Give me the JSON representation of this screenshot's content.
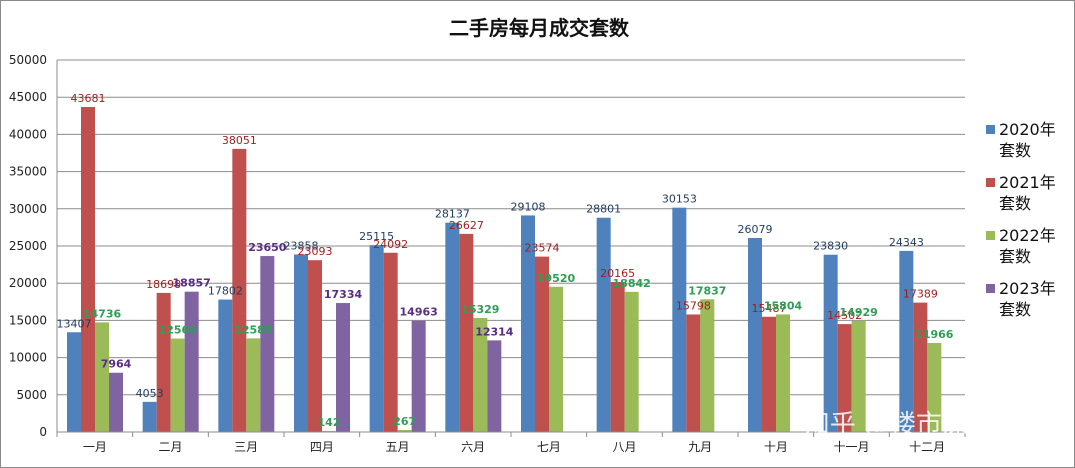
{
  "chart_data": {
    "type": "bar",
    "title": "二手房每月成交套数",
    "xlabel": "",
    "ylabel": "",
    "ylim": [
      0,
      50000
    ],
    "yticks": [
      "0",
      "5000",
      "10000",
      "15000",
      "20000",
      "25000",
      "30000",
      "35000",
      "40000",
      "45000",
      "50000"
    ],
    "grid": true,
    "legend_position": "right",
    "categories": [
      "一月",
      "二月",
      "三月",
      "四月",
      "五月",
      "六月",
      "七月",
      "八月",
      "九月",
      "十月",
      "十一月",
      "十二月"
    ],
    "series": [
      {
        "name": "2020年套数",
        "color": "#4f81bd",
        "label_color": "#1f3b5f",
        "values": [
          13407,
          4053,
          17802,
          23858,
          25115,
          28137,
          29108,
          28801,
          30153,
          26079,
          23830,
          24343
        ]
      },
      {
        "name": "2021年套数",
        "color": "#c0504d",
        "label_color": "#9b1f1c",
        "values": [
          43681,
          18698,
          38051,
          23093,
          24092,
          26627,
          23574,
          20165,
          15798,
          15487,
          14502,
          17389
        ]
      },
      {
        "name": "2022年套数",
        "color": "#9bbb59",
        "label_color": "#2e9e55",
        "values": [
          14736,
          12560,
          12585,
          142,
          267,
          15329,
          19520,
          18842,
          17837,
          15804,
          14929,
          11966
        ]
      },
      {
        "name": "2023年套数",
        "color": "#8064a2",
        "label_color": "#5a2d82",
        "values": [
          7964,
          18857,
          23650,
          17334,
          14963,
          12314,
          null,
          null,
          null,
          null,
          null,
          null
        ]
      }
    ]
  },
  "watermark": "知乎 @楼市深度分析"
}
